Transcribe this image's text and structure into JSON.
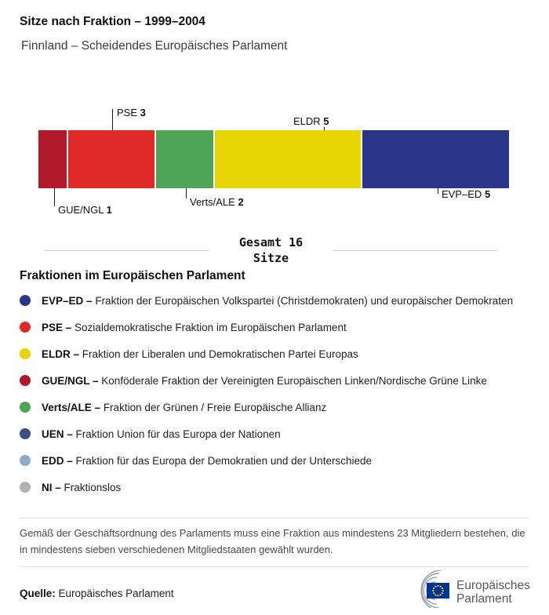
{
  "header": {
    "title": "Sitze nach Fraktion – 1999–2004",
    "subtitle": "Finnland – Scheidendes Europäisches Parlament"
  },
  "chart_data": {
    "type": "bar",
    "stacked": true,
    "orientation": "horizontal",
    "title": "Sitze nach Fraktion – 1999–2004",
    "categories": [
      "GUE/NGL",
      "PSE",
      "Verts/ALE",
      "ELDR",
      "EVP–ED"
    ],
    "values": [
      1,
      3,
      2,
      5,
      5
    ],
    "total": 16,
    "total_label_line1": "Gesamt 16",
    "total_label_line2": "Sitze",
    "segments": [
      {
        "name": "GUE/NGL",
        "seats": 1,
        "color": "#b1192a",
        "label_position": "below"
      },
      {
        "name": "PSE",
        "seats": 3,
        "color": "#e02a28",
        "label_position": "above"
      },
      {
        "name": "Verts/ALE",
        "seats": 2,
        "color": "#4fa457",
        "label_position": "below"
      },
      {
        "name": "ELDR",
        "seats": 5,
        "color": "#e7d500",
        "label_position": "above"
      },
      {
        "name": "EVP–ED",
        "seats": 5,
        "color": "#2a3588",
        "label_position": "below"
      }
    ]
  },
  "legend": {
    "heading": "Fraktionen im Europäischen Parlament",
    "items": [
      {
        "abbr": "EVP–ED –",
        "desc": "Fraktion der Europäischen Volkspartei (Christdemokraten) und europäischer Demokraten",
        "color": "#2a3588"
      },
      {
        "abbr": "PSE –",
        "desc": "Sozialdemokratische Fraktion im Europäischen Parlament",
        "color": "#e02a28"
      },
      {
        "abbr": "ELDR –",
        "desc": "Fraktion der Liberalen und Demokratischen Partei Europas",
        "color": "#e7d500"
      },
      {
        "abbr": "GUE/NGL –",
        "desc": "Konföderale Fraktion der Vereinigten Europäischen Linken/Nordische Grüne Linke",
        "color": "#b1192a"
      },
      {
        "abbr": "Verts/ALE –",
        "desc": "Fraktion der Grünen / Freie Europäische Allianz",
        "color": "#4fa457"
      },
      {
        "abbr": "UEN –",
        "desc": "Fraktion Union für das Europa der Nationen",
        "color": "#3d4e87"
      },
      {
        "abbr": "EDD –",
        "desc": "Fraktion für das Europa der Demokratien und der Unterschiede",
        "color": "#8babc8"
      },
      {
        "abbr": "NI –",
        "desc": "Fraktionslos",
        "color": "#b2b2b2"
      }
    ]
  },
  "footnote": "Gemäß der Geschäftsordnung des Parlaments muss eine Fraktion aus mindestens 23 Mitgliedern bestehen, die in mindestens sieben verschiedenen Mitgliedstaaten gewählt wurden.",
  "footer": {
    "source_label": "Quelle:",
    "source_value": "Europäisches Parlament",
    "logo_line1": "Europäisches",
    "logo_line2": "Parlament"
  }
}
